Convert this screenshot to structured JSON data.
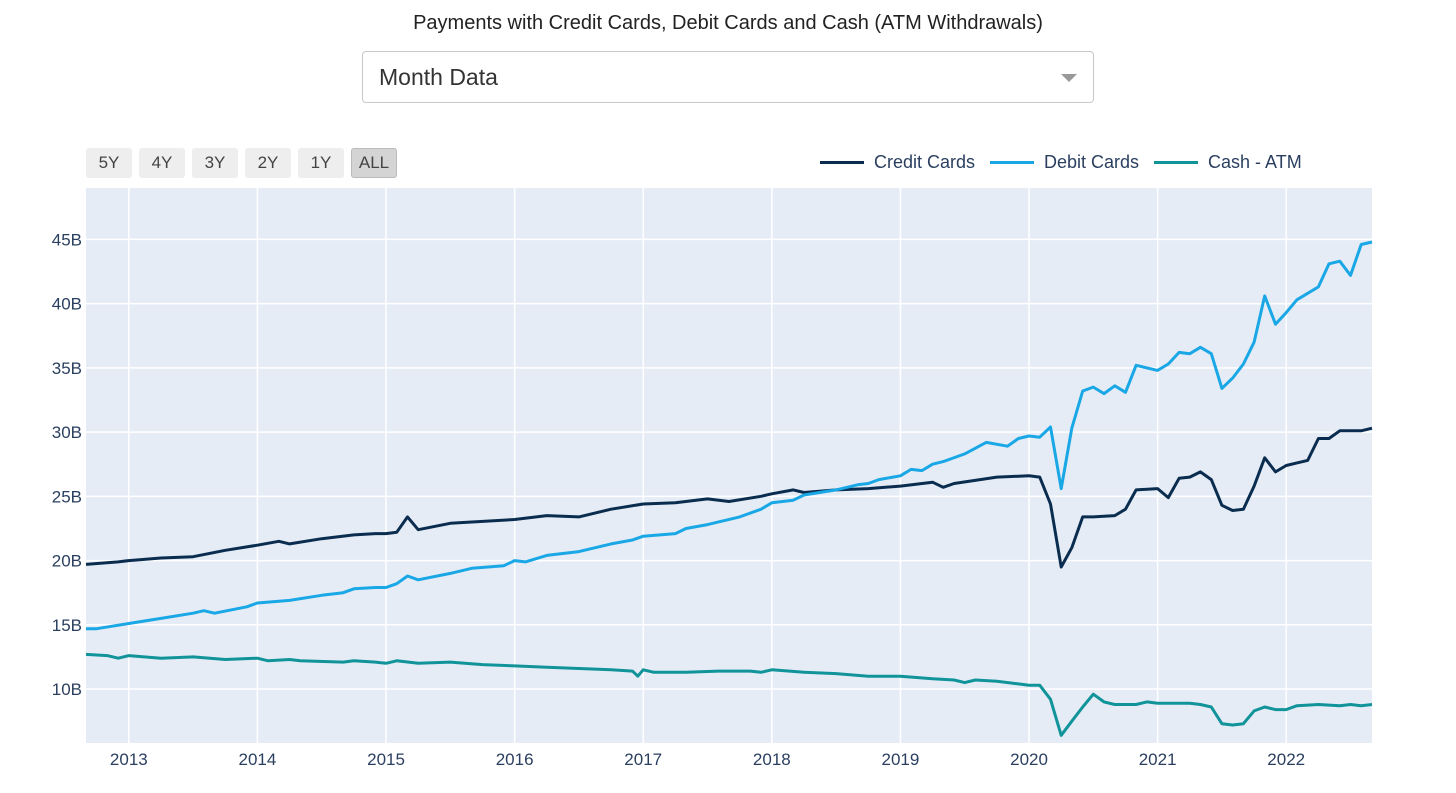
{
  "title": "Payments with Credit Cards, Debit Cards and Cash (ATM Withdrawals)",
  "dropdown": {
    "selected": "Month Data"
  },
  "range_buttons": [
    "5Y",
    "4Y",
    "3Y",
    "2Y",
    "1Y",
    "ALL"
  ],
  "active_range": "ALL",
  "colors": {
    "plot_bg": "#e5ecf6",
    "grid": "#ffffff",
    "credit": "#0a2d4f",
    "debit": "#1aa7e5",
    "cash": "#11939a"
  },
  "chart_data": {
    "type": "line",
    "title": "Payments with Credit Cards, Debit Cards and Cash (ATM Withdrawals)",
    "xlabel": "",
    "ylabel": "",
    "xlim": [
      2012.667,
      2022.667
    ],
    "ylim": [
      5.8,
      49
    ],
    "x_ticks": [
      2013,
      2014,
      2015,
      2016,
      2017,
      2018,
      2019,
      2020,
      2021,
      2022
    ],
    "y_ticks": [
      10,
      15,
      20,
      25,
      30,
      35,
      40,
      45
    ],
    "y_tick_labels": [
      "10B",
      "15B",
      "20B",
      "25B",
      "30B",
      "35B",
      "40B",
      "45B"
    ],
    "legend_position": "top-right",
    "grid": true,
    "series": [
      {
        "name": "Credit Cards",
        "color": "#0a2d4f",
        "points": [
          [
            2012.667,
            19.7
          ],
          [
            2012.917,
            19.9
          ],
          [
            2013.0,
            20.0
          ],
          [
            2013.25,
            20.2
          ],
          [
            2013.5,
            20.3
          ],
          [
            2013.75,
            20.8
          ],
          [
            2014.0,
            21.2
          ],
          [
            2014.167,
            21.5
          ],
          [
            2014.25,
            21.3
          ],
          [
            2014.5,
            21.7
          ],
          [
            2014.75,
            22.0
          ],
          [
            2014.917,
            22.1
          ],
          [
            2015.0,
            22.1
          ],
          [
            2015.083,
            22.2
          ],
          [
            2015.167,
            23.4
          ],
          [
            2015.25,
            22.4
          ],
          [
            2015.5,
            22.9
          ],
          [
            2015.667,
            23.0
          ],
          [
            2016.0,
            23.2
          ],
          [
            2016.25,
            23.5
          ],
          [
            2016.5,
            23.4
          ],
          [
            2016.75,
            24.0
          ],
          [
            2017.0,
            24.4
          ],
          [
            2017.25,
            24.5
          ],
          [
            2017.5,
            24.8
          ],
          [
            2017.667,
            24.6
          ],
          [
            2017.917,
            25.0
          ],
          [
            2018.0,
            25.2
          ],
          [
            2018.167,
            25.5
          ],
          [
            2018.25,
            25.3
          ],
          [
            2018.5,
            25.5
          ],
          [
            2018.75,
            25.6
          ],
          [
            2019.0,
            25.8
          ],
          [
            2019.25,
            26.1
          ],
          [
            2019.333,
            25.7
          ],
          [
            2019.417,
            26.0
          ],
          [
            2019.75,
            26.5
          ],
          [
            2020.0,
            26.6
          ],
          [
            2020.083,
            26.5
          ],
          [
            2020.167,
            24.4
          ],
          [
            2020.25,
            19.5
          ],
          [
            2020.333,
            21.0
          ],
          [
            2020.417,
            23.4
          ],
          [
            2020.5,
            23.4
          ],
          [
            2020.667,
            23.5
          ],
          [
            2020.75,
            24.0
          ],
          [
            2020.833,
            25.5
          ],
          [
            2021.0,
            25.6
          ],
          [
            2021.083,
            24.9
          ],
          [
            2021.167,
            26.4
          ],
          [
            2021.25,
            26.5
          ],
          [
            2021.333,
            26.9
          ],
          [
            2021.417,
            26.3
          ],
          [
            2021.5,
            24.3
          ],
          [
            2021.583,
            23.9
          ],
          [
            2021.667,
            24.0
          ],
          [
            2021.75,
            25.8
          ],
          [
            2021.833,
            28.0
          ],
          [
            2021.917,
            26.9
          ],
          [
            2022.0,
            27.4
          ],
          [
            2022.083,
            27.6
          ],
          [
            2022.167,
            27.8
          ],
          [
            2022.25,
            29.5
          ],
          [
            2022.333,
            29.5
          ],
          [
            2022.417,
            30.1
          ],
          [
            2022.5,
            30.1
          ],
          [
            2022.583,
            30.1
          ],
          [
            2022.667,
            30.3
          ]
        ]
      },
      {
        "name": "Debit Cards",
        "color": "#1aa7e5",
        "points": [
          [
            2012.667,
            14.7
          ],
          [
            2012.75,
            14.7
          ],
          [
            2013.0,
            15.1
          ],
          [
            2013.25,
            15.5
          ],
          [
            2013.5,
            15.9
          ],
          [
            2013.583,
            16.1
          ],
          [
            2013.667,
            15.9
          ],
          [
            2013.917,
            16.4
          ],
          [
            2014.0,
            16.7
          ],
          [
            2014.25,
            16.9
          ],
          [
            2014.5,
            17.3
          ],
          [
            2014.667,
            17.5
          ],
          [
            2014.75,
            17.8
          ],
          [
            2014.917,
            17.9
          ],
          [
            2015.0,
            17.9
          ],
          [
            2015.083,
            18.2
          ],
          [
            2015.167,
            18.8
          ],
          [
            2015.25,
            18.5
          ],
          [
            2015.5,
            19.0
          ],
          [
            2015.667,
            19.4
          ],
          [
            2015.917,
            19.6
          ],
          [
            2016.0,
            20.0
          ],
          [
            2016.083,
            19.9
          ],
          [
            2016.25,
            20.4
          ],
          [
            2016.5,
            20.7
          ],
          [
            2016.75,
            21.3
          ],
          [
            2016.917,
            21.6
          ],
          [
            2017.0,
            21.9
          ],
          [
            2017.25,
            22.1
          ],
          [
            2017.333,
            22.5
          ],
          [
            2017.5,
            22.8
          ],
          [
            2017.75,
            23.4
          ],
          [
            2017.917,
            24.0
          ],
          [
            2018.0,
            24.5
          ],
          [
            2018.167,
            24.7
          ],
          [
            2018.25,
            25.1
          ],
          [
            2018.5,
            25.5
          ],
          [
            2018.667,
            25.9
          ],
          [
            2018.75,
            26.0
          ],
          [
            2018.833,
            26.3
          ],
          [
            2019.0,
            26.6
          ],
          [
            2019.083,
            27.1
          ],
          [
            2019.167,
            27.0
          ],
          [
            2019.25,
            27.5
          ],
          [
            2019.333,
            27.7
          ],
          [
            2019.5,
            28.3
          ],
          [
            2019.667,
            29.2
          ],
          [
            2019.833,
            28.9
          ],
          [
            2019.917,
            29.5
          ],
          [
            2020.0,
            29.7
          ],
          [
            2020.083,
            29.6
          ],
          [
            2020.167,
            30.4
          ],
          [
            2020.25,
            25.6
          ],
          [
            2020.333,
            30.3
          ],
          [
            2020.417,
            33.2
          ],
          [
            2020.5,
            33.5
          ],
          [
            2020.583,
            33.0
          ],
          [
            2020.667,
            33.6
          ],
          [
            2020.75,
            33.1
          ],
          [
            2020.833,
            35.2
          ],
          [
            2020.917,
            35.0
          ],
          [
            2021.0,
            34.8
          ],
          [
            2021.083,
            35.3
          ],
          [
            2021.167,
            36.2
          ],
          [
            2021.25,
            36.1
          ],
          [
            2021.333,
            36.6
          ],
          [
            2021.417,
            36.1
          ],
          [
            2021.5,
            33.4
          ],
          [
            2021.583,
            34.2
          ],
          [
            2021.667,
            35.3
          ],
          [
            2021.75,
            37.0
          ],
          [
            2021.833,
            40.6
          ],
          [
            2021.917,
            38.4
          ],
          [
            2022.0,
            39.3
          ],
          [
            2022.083,
            40.3
          ],
          [
            2022.167,
            40.8
          ],
          [
            2022.25,
            41.3
          ],
          [
            2022.333,
            43.1
          ],
          [
            2022.417,
            43.3
          ],
          [
            2022.5,
            42.2
          ],
          [
            2022.583,
            44.6
          ],
          [
            2022.667,
            44.8
          ]
        ]
      },
      {
        "name": "Cash - ATM",
        "color": "#11939a",
        "points": [
          [
            2012.667,
            12.7
          ],
          [
            2012.833,
            12.6
          ],
          [
            2012.917,
            12.4
          ],
          [
            2013.0,
            12.6
          ],
          [
            2013.25,
            12.4
          ],
          [
            2013.5,
            12.5
          ],
          [
            2013.75,
            12.3
          ],
          [
            2014.0,
            12.4
          ],
          [
            2014.083,
            12.2
          ],
          [
            2014.25,
            12.3
          ],
          [
            2014.333,
            12.2
          ],
          [
            2014.667,
            12.1
          ],
          [
            2014.75,
            12.2
          ],
          [
            2014.917,
            12.1
          ],
          [
            2015.0,
            12.0
          ],
          [
            2015.083,
            12.2
          ],
          [
            2015.25,
            12.0
          ],
          [
            2015.5,
            12.1
          ],
          [
            2015.75,
            11.9
          ],
          [
            2016.0,
            11.8
          ],
          [
            2016.25,
            11.7
          ],
          [
            2016.5,
            11.6
          ],
          [
            2016.75,
            11.5
          ],
          [
            2016.917,
            11.4
          ],
          [
            2016.958,
            11.0
          ],
          [
            2017.0,
            11.5
          ],
          [
            2017.083,
            11.3
          ],
          [
            2017.333,
            11.3
          ],
          [
            2017.583,
            11.4
          ],
          [
            2017.833,
            11.4
          ],
          [
            2017.917,
            11.3
          ],
          [
            2018.0,
            11.5
          ],
          [
            2018.25,
            11.3
          ],
          [
            2018.5,
            11.2
          ],
          [
            2018.75,
            11.0
          ],
          [
            2019.0,
            11.0
          ],
          [
            2019.25,
            10.8
          ],
          [
            2019.417,
            10.7
          ],
          [
            2019.5,
            10.5
          ],
          [
            2019.583,
            10.7
          ],
          [
            2019.75,
            10.6
          ],
          [
            2019.917,
            10.4
          ],
          [
            2020.0,
            10.3
          ],
          [
            2020.083,
            10.3
          ],
          [
            2020.167,
            9.2
          ],
          [
            2020.25,
            6.4
          ],
          [
            2020.333,
            7.5
          ],
          [
            2020.417,
            8.6
          ],
          [
            2020.5,
            9.6
          ],
          [
            2020.583,
            9.0
          ],
          [
            2020.667,
            8.8
          ],
          [
            2020.833,
            8.8
          ],
          [
            2020.917,
            9.0
          ],
          [
            2021.0,
            8.9
          ],
          [
            2021.25,
            8.9
          ],
          [
            2021.333,
            8.8
          ],
          [
            2021.417,
            8.6
          ],
          [
            2021.5,
            7.3
          ],
          [
            2021.583,
            7.2
          ],
          [
            2021.667,
            7.3
          ],
          [
            2021.75,
            8.3
          ],
          [
            2021.833,
            8.6
          ],
          [
            2021.917,
            8.4
          ],
          [
            2022.0,
            8.4
          ],
          [
            2022.083,
            8.7
          ],
          [
            2022.25,
            8.8
          ],
          [
            2022.417,
            8.7
          ],
          [
            2022.5,
            8.8
          ],
          [
            2022.583,
            8.7
          ],
          [
            2022.667,
            8.8
          ]
        ]
      }
    ]
  }
}
